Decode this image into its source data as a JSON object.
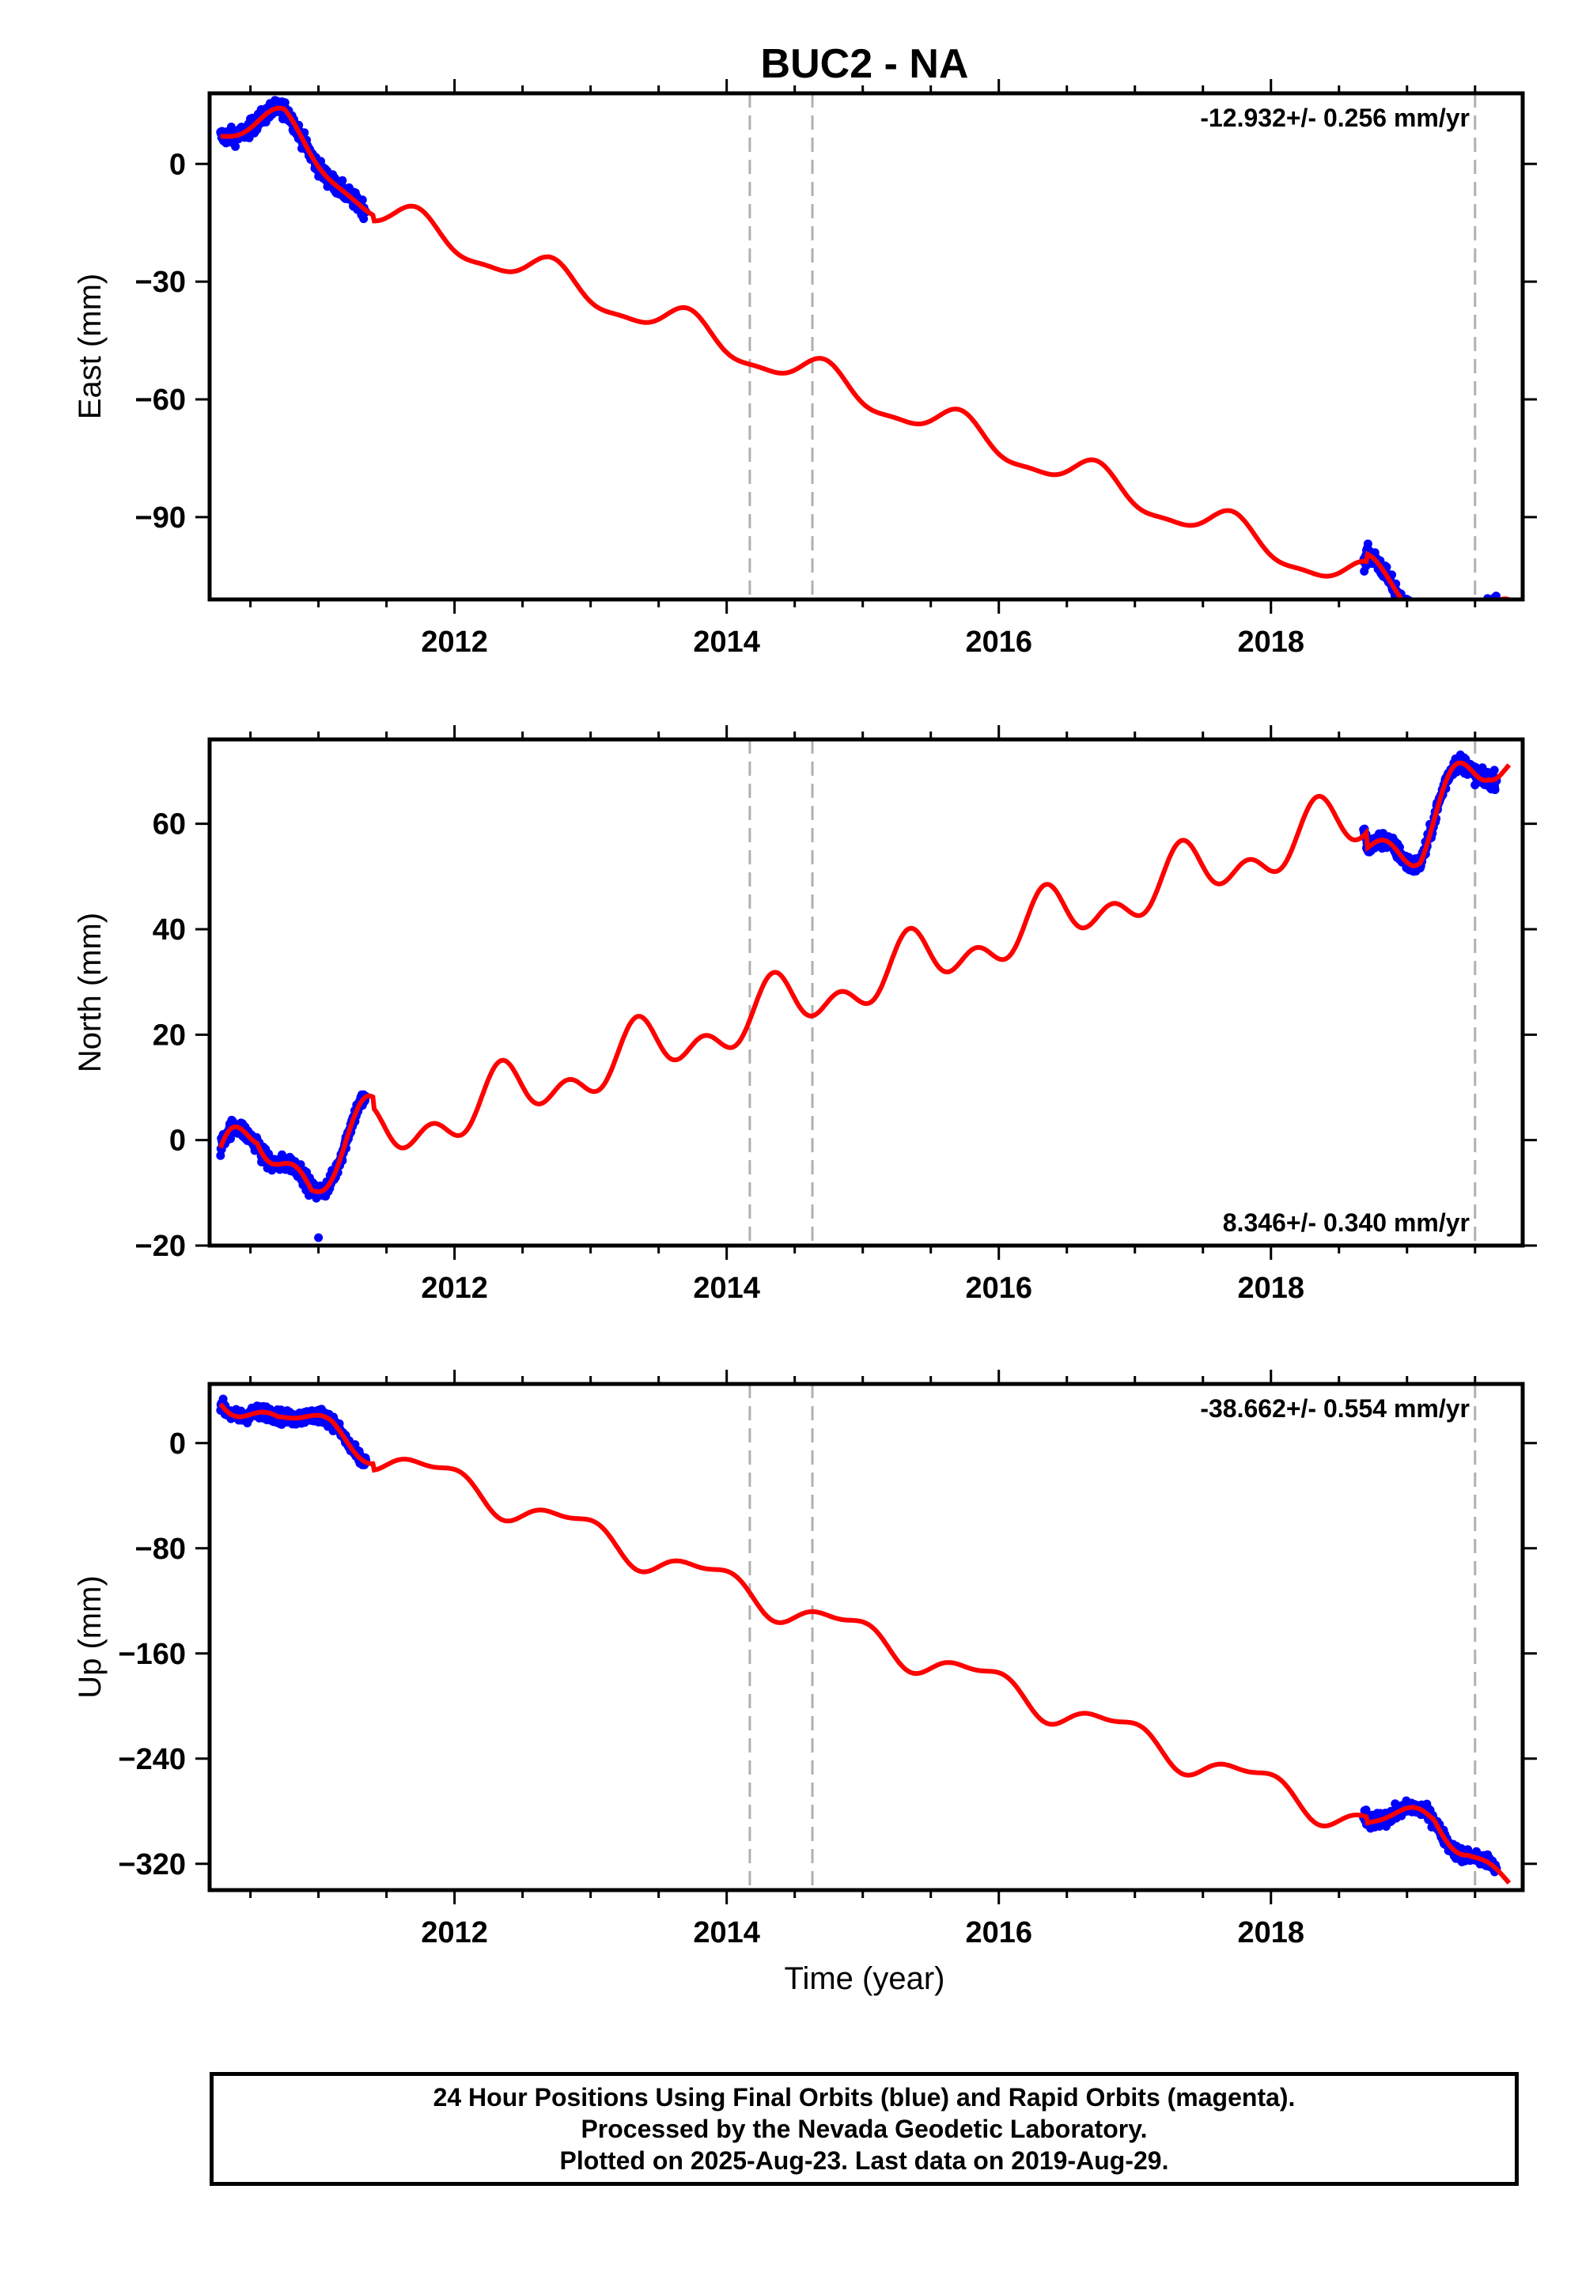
{
  "title": "BUC2 - NA",
  "colors": {
    "final_orbits": "#0000ff",
    "model": "#ff0000",
    "event_lines": "#b0b0b0",
    "frame": "#000000"
  },
  "xlabel": "Time (year)",
  "footer": {
    "line1": "24 Hour Positions Using Final Orbits (blue) and Rapid Orbits (magenta).",
    "line2": "Processed by the Nevada Geodetic Laboratory.",
    "line3": "Plotted on 2025-Aug-23. Last data on 2019-Aug-29."
  },
  "chart_data": [
    {
      "type": "scatter",
      "ylabel": "East (mm)",
      "rate_text": "-12.932+/- 0.256 mm/yr",
      "rate_position": "top-right",
      "xlim": [
        2010.2,
        2019.85
      ],
      "ylim": [
        -111,
        18
      ],
      "xticks": [
        2012,
        2014,
        2016,
        2018
      ],
      "yticks": [
        0,
        -30,
        -60,
        -90
      ],
      "event_lines": [
        2014.17,
        2014.63,
        2019.5
      ],
      "model": {
        "trend": -12.932,
        "offset": -20.0,
        "t0": 2012.0,
        "annual_sin": -4.0,
        "annual_cos": -1.0,
        "semi_sin": 0.4,
        "semi_cos": -1.2,
        "window_adjust": [
          {
            "from": 2010.28,
            "to": 2011.4,
            "add": [
              [
                2010.28,
                7.6
              ],
              [
                2010.75,
                12.6
              ],
              [
                2011.1,
                6.9
              ],
              [
                2011.4,
                1.5
              ]
            ]
          },
          {
            "from": 2018.7,
            "to": 2019.75,
            "add": [
              [
                2018.7,
                2
              ],
              [
                2019.3,
                -2
              ],
              [
                2019.75,
                4
              ]
            ]
          }
        ]
      },
      "observations": [
        {
          "name": "Final Orbits",
          "range": [
            2010.28,
            2011.35
          ],
          "noise": 2
        },
        {
          "name": "Final Orbits",
          "range": [
            2018.68,
            2019.66
          ],
          "noise": 2
        }
      ]
    },
    {
      "type": "scatter",
      "ylabel": "North (mm)",
      "rate_text": "8.346+/- 0.340 mm/yr",
      "rate_position": "bottom-right",
      "xlim": [
        2010.2,
        2019.85
      ],
      "ylim": [
        -20,
        76
      ],
      "xticks": [
        2012,
        2014,
        2016,
        2018
      ],
      "yticks": [
        60,
        40,
        20,
        0,
        -20
      ],
      "event_lines": [
        2014.17,
        2014.63,
        2019.5
      ],
      "model": {
        "trend": 8.346,
        "offset": 5.0,
        "t0": 2012.0,
        "annual_sin": 3.0,
        "annual_cos": -2.5,
        "semi_sin": -3.0,
        "semi_cos": -1.5,
        "window_adjust": [
          {
            "from": 2010.28,
            "to": 2011.4,
            "add": [
              [
                2010.28,
                2
              ],
              [
                2010.55,
                8
              ],
              [
                2010.95,
                -3
              ],
              [
                2011.4,
                2
              ]
            ]
          },
          {
            "from": 2018.7,
            "to": 2019.75,
            "add": [
              [
                2018.7,
                -3
              ],
              [
                2019.1,
                -8
              ],
              [
                2019.6,
                3
              ]
            ]
          }
        ]
      },
      "observations": [
        {
          "name": "Final Orbits",
          "range": [
            2010.28,
            2011.35
          ],
          "noise": 1.5,
          "outliers": [
            [
              2011.0,
              -18.5
            ]
          ]
        },
        {
          "name": "Final Orbits",
          "range": [
            2018.68,
            2019.66
          ],
          "noise": 1.5
        }
      ]
    },
    {
      "type": "scatter",
      "ylabel": "Up (mm)",
      "rate_text": "-38.662+/- 0.554 mm/yr",
      "rate_position": "top-right",
      "xlim": [
        2010.2,
        2019.85
      ],
      "ylim": [
        -340,
        45
      ],
      "xticks": [
        2012,
        2014,
        2016,
        2018
      ],
      "yticks": [
        0,
        -80,
        -160,
        -240,
        -320
      ],
      "event_lines": [
        2014.17,
        2014.63,
        2019.5
      ],
      "model": {
        "trend": -38.662,
        "offset": -30.0,
        "t0": 2012.0,
        "annual_sin": -7.0,
        "annual_cos": 8.0,
        "semi_sin": 4.0,
        "semi_cos": 2.0,
        "window_adjust": [
          {
            "from": 2010.28,
            "to": 2011.4,
            "add": [
              [
                2010.28,
                5
              ],
              [
                2010.7,
                -5
              ],
              [
                2011.1,
                5
              ],
              [
                2011.4,
                5
              ]
            ]
          },
          {
            "from": 2018.7,
            "to": 2019.75,
            "add": [
              [
                2018.7,
                -5
              ],
              [
                2019.2,
                25
              ],
              [
                2019.45,
                15
              ],
              [
                2019.75,
                -10
              ]
            ]
          }
        ]
      },
      "observations": [
        {
          "name": "Final Orbits",
          "range": [
            2010.28,
            2011.35
          ],
          "noise": 5
        },
        {
          "name": "Final Orbits",
          "range": [
            2018.68,
            2019.66
          ],
          "noise": 5
        }
      ]
    }
  ]
}
